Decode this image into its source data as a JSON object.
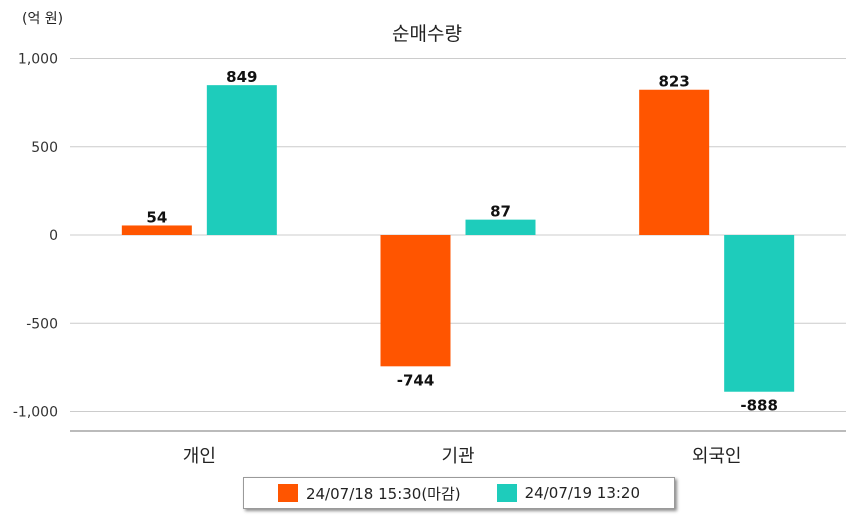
{
  "chart_data": {
    "type": "bar",
    "title": "순매수량",
    "unit_label": "(억 원)",
    "categories": [
      "개인",
      "기관",
      "외국인"
    ],
    "series": [
      {
        "name": "24/07/18 15:30(마감)",
        "values": [
          54,
          -744,
          823
        ],
        "color": "#FF5500"
      },
      {
        "name": "24/07/19 13:20",
        "values": [
          849,
          87,
          -888
        ],
        "color": "#1ECCBB"
      }
    ],
    "yticks": [
      1000,
      500,
      0,
      -500,
      -1000
    ],
    "ytick_labels": [
      "1,000",
      "500",
      "0",
      "-500",
      "-1,000"
    ],
    "ylim": [
      -1100,
      1000
    ],
    "grid": true,
    "legend_position": "bottom"
  }
}
